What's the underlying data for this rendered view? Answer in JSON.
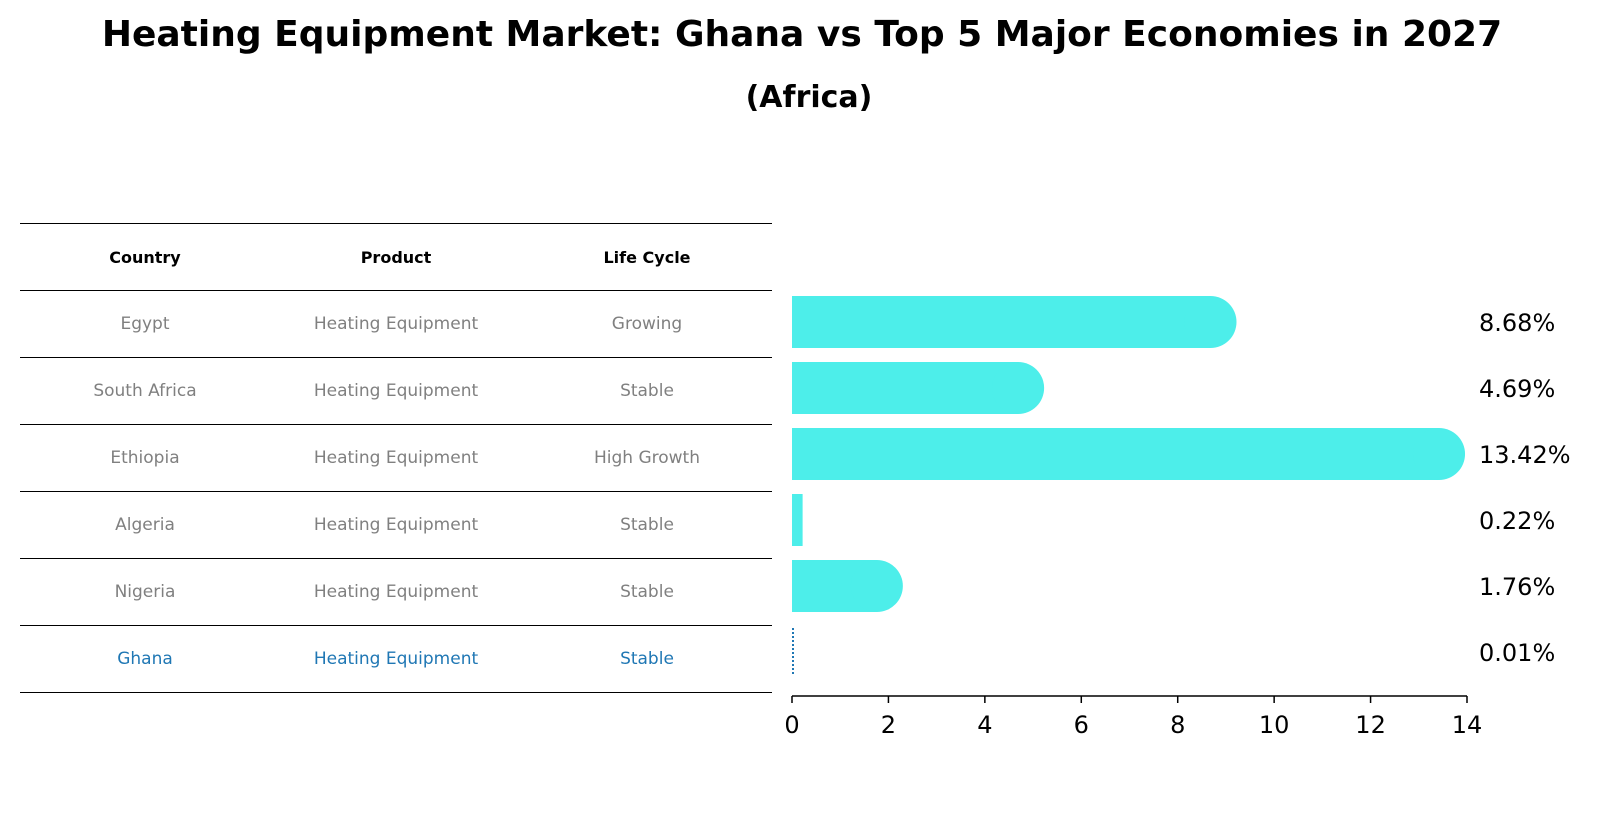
{
  "title": "Heating Equipment Market: Ghana vs Top 5 Major Economies in 2027",
  "subtitle": "(Africa)",
  "table": {
    "headers": [
      "Country",
      "Product",
      "Life Cycle"
    ],
    "rows": [
      {
        "country": "Egypt",
        "product": "Heating Equipment",
        "life_cycle": "Growing"
      },
      {
        "country": "South Africa",
        "product": "Heating Equipment",
        "life_cycle": "Stable"
      },
      {
        "country": "Ethiopia",
        "product": "Heating Equipment",
        "life_cycle": "High Growth"
      },
      {
        "country": "Algeria",
        "product": "Heating Equipment",
        "life_cycle": "Stable"
      },
      {
        "country": "Nigeria",
        "product": "Heating Equipment",
        "life_cycle": "Stable"
      },
      {
        "country": "Ghana",
        "product": "Heating Equipment",
        "life_cycle": "Stable"
      }
    ]
  },
  "colors": {
    "bar": "#4deeea",
    "highlight": "#1f77b4"
  },
  "chart_data": {
    "type": "bar",
    "orientation": "horizontal",
    "categories": [
      "Egypt",
      "South Africa",
      "Ethiopia",
      "Algeria",
      "Nigeria",
      "Ghana"
    ],
    "values": [
      8.68,
      4.69,
      13.42,
      0.22,
      1.76,
      0.01
    ],
    "value_labels": [
      "8.68%",
      "4.69%",
      "13.42%",
      "0.22%",
      "1.76%",
      "0.01%"
    ],
    "xlim": [
      0,
      14
    ],
    "xticks": [
      "0",
      "2",
      "4",
      "6",
      "8",
      "10",
      "12",
      "14"
    ],
    "highlight": "Ghana",
    "grid": false
  }
}
